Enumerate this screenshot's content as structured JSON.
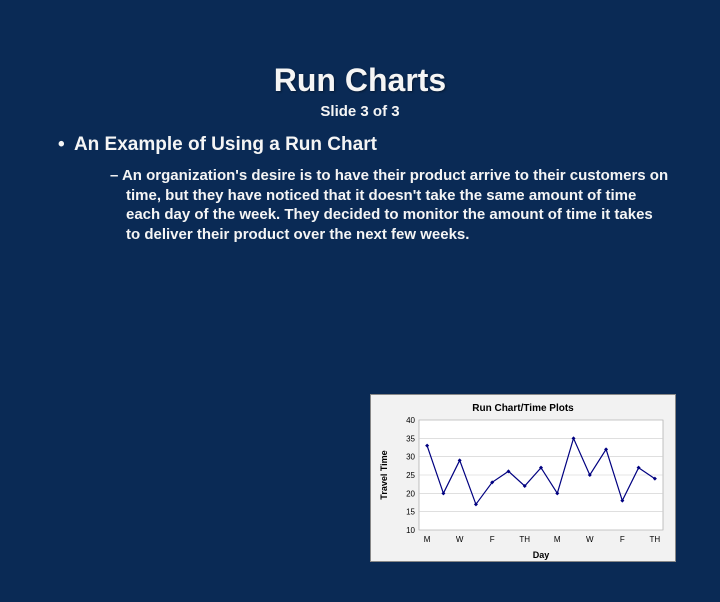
{
  "slide": {
    "title": "Run Charts",
    "subtitle": "Slide 3 of 3",
    "bullet1": "An Example of Using a Run Chart",
    "bullet2": "An organization's desire is to have their product arrive to their customers on time, but they have noticed that it doesn't take the same amount of time each day of the week.  They decided to monitor the amount of time it takes to deliver their product over the next few weeks."
  },
  "chart": {
    "type": "line",
    "title": "Run Chart/Time Plots",
    "xlabel": "Day",
    "ylabel": "Travel Time",
    "background_color": "#f2f2f2",
    "plot_background": "#ffffff",
    "grid_color": "#cccccc",
    "line_color": "#000080",
    "marker_color": "#000080",
    "marker_style": "diamond",
    "marker_size": 4,
    "line_width": 1.2,
    "ylim": [
      10,
      40
    ],
    "ytick_step": 5,
    "yticks": [
      10,
      15,
      20,
      25,
      30,
      35,
      40
    ],
    "x_categories": [
      "M",
      "",
      "W",
      "",
      "F",
      "",
      "TH",
      "",
      "M",
      "",
      "W",
      "",
      "F",
      "",
      "TH"
    ],
    "values": [
      33,
      20,
      29,
      17,
      23,
      26,
      22,
      27,
      20,
      35,
      25,
      32,
      18,
      27,
      24
    ]
  }
}
